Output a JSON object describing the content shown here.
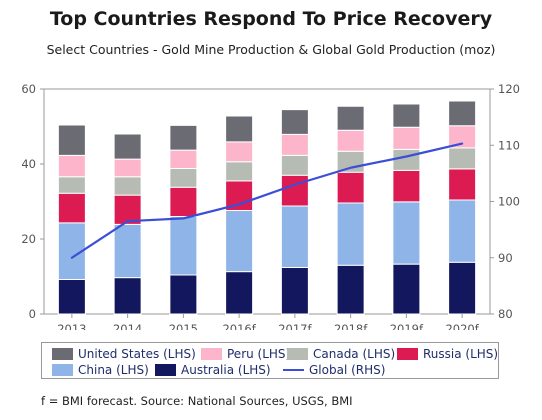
{
  "title": "Top Countries Respond To Price Recovery",
  "subtitle": "Select Countries - Gold Mine Production & Global Gold Production (moz)",
  "footnote": "f = BMI forecast. Source: National Sources, USGS, BMI",
  "chart_data": {
    "type": "bar",
    "stacked": true,
    "categories": [
      "2013",
      "2014",
      "2015",
      "2016f",
      "2017f",
      "2018f",
      "2019f",
      "2020f"
    ],
    "series": [
      {
        "name": "Australia (LHS)",
        "color": "#12175e",
        "values": [
          9.2,
          9.7,
          10.4,
          11.3,
          12.4,
          13.0,
          13.3,
          13.8
        ]
      },
      {
        "name": "China (LHS)",
        "color": "#8fb4e8",
        "values": [
          15.1,
          14.2,
          15.6,
          16.3,
          16.4,
          16.6,
          16.6,
          16.6
        ]
      },
      {
        "name": "Russia (LHS)",
        "color": "#dc1b53",
        "values": [
          7.9,
          7.8,
          7.8,
          7.9,
          8.2,
          8.2,
          8.4,
          8.3
        ]
      },
      {
        "name": "Canada (LHS)",
        "color": "#b6bcb3",
        "values": [
          4.4,
          4.9,
          5.0,
          5.1,
          5.3,
          5.6,
          5.6,
          5.6
        ]
      },
      {
        "name": "Peru (LHS)",
        "color": "#fdb5cc",
        "values": [
          5.7,
          4.7,
          4.9,
          5.3,
          5.6,
          5.6,
          5.9,
          5.9
        ]
      },
      {
        "name": "United States (LHS)",
        "color": "#6b6b74",
        "values": [
          8.1,
          6.7,
          6.6,
          6.9,
          6.6,
          6.4,
          6.2,
          6.6
        ]
      }
    ],
    "line_series": {
      "name": "Global (RHS)",
      "color": "#3b4fd6",
      "values": [
        90.0,
        96.5,
        97.0,
        99.5,
        103.0,
        106.0,
        108.0,
        110.3
      ]
    },
    "y_left": {
      "min": 0,
      "max": 60,
      "ticks": [
        0,
        20,
        40,
        60
      ]
    },
    "y_right": {
      "min": 80,
      "max": 120,
      "ticks": [
        80,
        90,
        100,
        110,
        120
      ]
    },
    "grid": false,
    "legend_position": "bottom"
  },
  "legend": {
    "row1": [
      {
        "label": "United States (LHS)",
        "color": "#6b6b74"
      },
      {
        "label": "Peru (LHS)",
        "color": "#fdb5cc"
      },
      {
        "label": "Canada (LHS)",
        "color": "#b6bcb3"
      },
      {
        "label": "Russia (LHS)",
        "color": "#dc1b53"
      }
    ],
    "row2": [
      {
        "label": "China (LHS)",
        "color": "#8fb4e8"
      },
      {
        "label": "Australia (LHS)",
        "color": "#12175e"
      },
      {
        "label": "Global (RHS)",
        "color": "#3b4fd6",
        "kind": "line"
      }
    ]
  }
}
